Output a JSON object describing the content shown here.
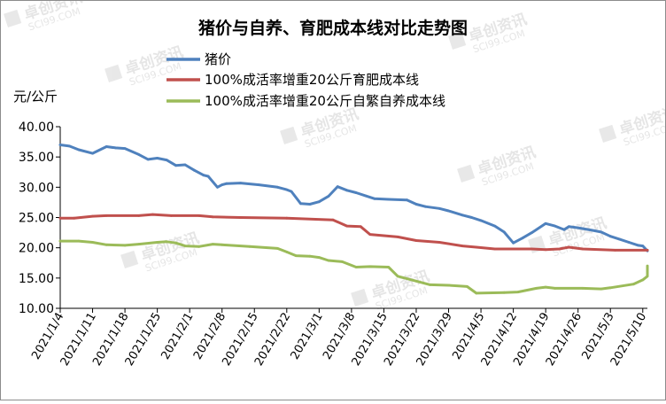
{
  "chart_data": {
    "type": "line",
    "title": "猪价与自养、育肥成本线对比走势图",
    "ylabel": "元/公斤",
    "xlabel": "",
    "ylim": [
      10,
      40
    ],
    "yticks": [
      "10.00",
      "15.00",
      "20.00",
      "25.00",
      "30.00",
      "35.00",
      "40.00"
    ],
    "grid": false,
    "legend_position": "top",
    "x_start": "2021/1/4",
    "x_end": "2021/5/11",
    "x_ticks": [
      "2021/1/4",
      "2021/1/11",
      "2021/1/18",
      "2021/1/25",
      "2021/2/1",
      "2021/2/8",
      "2021/2/15",
      "2021/2/22",
      "2021/3/1",
      "2021/3/8",
      "2021/3/15",
      "2021/3/22",
      "2021/3/29",
      "2021/4/5",
      "2021/4/12",
      "2021/4/19",
      "2021/4/26",
      "2021/5/3",
      "2021/5/10"
    ],
    "series": [
      {
        "name": "猪价",
        "color": "#4f81bd",
        "points": [
          [
            "2021/1/4",
            37.0
          ],
          [
            "2021/1/6",
            36.8
          ],
          [
            "2021/1/8",
            36.2
          ],
          [
            "2021/1/11",
            35.6
          ],
          [
            "2021/1/14",
            36.7
          ],
          [
            "2021/1/16",
            36.5
          ],
          [
            "2021/1/18",
            36.4
          ],
          [
            "2021/1/21",
            35.4
          ],
          [
            "2021/1/23",
            34.6
          ],
          [
            "2021/1/25",
            34.8
          ],
          [
            "2021/1/27",
            34.5
          ],
          [
            "2021/1/29",
            33.6
          ],
          [
            "2021/1/31",
            33.7
          ],
          [
            "2021/2/2",
            32.8
          ],
          [
            "2021/2/4",
            32.0
          ],
          [
            "2021/2/5",
            31.8
          ],
          [
            "2021/2/7",
            30.0
          ],
          [
            "2021/2/8",
            30.4
          ],
          [
            "2021/2/9",
            30.6
          ],
          [
            "2021/2/12",
            30.7
          ],
          [
            "2021/2/16",
            30.4
          ],
          [
            "2021/2/20",
            30.0
          ],
          [
            "2021/2/22",
            29.6
          ],
          [
            "2021/2/23",
            29.3
          ],
          [
            "2021/2/25",
            27.3
          ],
          [
            "2021/2/27",
            27.2
          ],
          [
            "2021/3/1",
            27.6
          ],
          [
            "2021/3/3",
            28.5
          ],
          [
            "2021/3/5",
            30.1
          ],
          [
            "2021/3/7",
            29.5
          ],
          [
            "2021/3/9",
            29.1
          ],
          [
            "2021/3/11",
            28.6
          ],
          [
            "2021/3/13",
            28.1
          ],
          [
            "2021/3/16",
            28.0
          ],
          [
            "2021/3/20",
            27.9
          ],
          [
            "2021/3/22",
            27.2
          ],
          [
            "2021/3/24",
            26.8
          ],
          [
            "2021/3/27",
            26.5
          ],
          [
            "2021/3/29",
            26.1
          ],
          [
            "2021/4/1",
            25.4
          ],
          [
            "2021/4/3",
            25.0
          ],
          [
            "2021/4/5",
            24.5
          ],
          [
            "2021/4/8",
            23.6
          ],
          [
            "2021/4/10",
            22.6
          ],
          [
            "2021/4/12",
            20.8
          ],
          [
            "2021/4/14",
            21.6
          ],
          [
            "2021/4/16",
            22.5
          ],
          [
            "2021/4/19",
            24.0
          ],
          [
            "2021/4/21",
            23.6
          ],
          [
            "2021/4/23",
            23.0
          ],
          [
            "2021/4/24",
            23.5
          ],
          [
            "2021/4/26",
            23.3
          ],
          [
            "2021/4/29",
            22.9
          ],
          [
            "2021/5/1",
            22.6
          ],
          [
            "2021/5/3",
            21.9
          ],
          [
            "2021/5/5",
            21.4
          ],
          [
            "2021/5/7",
            20.9
          ],
          [
            "2021/5/9",
            20.4
          ],
          [
            "2021/5/10",
            20.3
          ],
          [
            "2021/5/11",
            19.5
          ]
        ]
      },
      {
        "name": "100%成活率增重20公斤育肥成本线",
        "color": "#c0504d",
        "points": [
          [
            "2021/1/4",
            24.9
          ],
          [
            "2021/1/7",
            24.9
          ],
          [
            "2021/1/11",
            25.2
          ],
          [
            "2021/1/14",
            25.3
          ],
          [
            "2021/1/21",
            25.3
          ],
          [
            "2021/1/24",
            25.5
          ],
          [
            "2021/1/28",
            25.3
          ],
          [
            "2021/2/3",
            25.3
          ],
          [
            "2021/2/6",
            25.1
          ],
          [
            "2021/2/12",
            25.0
          ],
          [
            "2021/2/22",
            24.9
          ],
          [
            "2021/3/4",
            24.6
          ],
          [
            "2021/3/7",
            23.6
          ],
          [
            "2021/3/10",
            23.5
          ],
          [
            "2021/3/12",
            22.2
          ],
          [
            "2021/3/18",
            21.8
          ],
          [
            "2021/3/22",
            21.2
          ],
          [
            "2021/3/27",
            20.9
          ],
          [
            "2021/4/1",
            20.3
          ],
          [
            "2021/4/4",
            20.1
          ],
          [
            "2021/4/8",
            19.8
          ],
          [
            "2021/4/16",
            19.8
          ],
          [
            "2021/4/19",
            19.7
          ],
          [
            "2021/4/22",
            19.8
          ],
          [
            "2021/4/24",
            20.1
          ],
          [
            "2021/4/27",
            19.8
          ],
          [
            "2021/5/4",
            19.6
          ],
          [
            "2021/5/11",
            19.6
          ]
        ]
      },
      {
        "name": "100%成活率增重20公斤自繁自养成本线",
        "color": "#9bbb59",
        "points": [
          [
            "2021/1/4",
            21.1
          ],
          [
            "2021/1/8",
            21.1
          ],
          [
            "2021/1/11",
            20.9
          ],
          [
            "2021/1/14",
            20.5
          ],
          [
            "2021/1/18",
            20.4
          ],
          [
            "2021/1/21",
            20.6
          ],
          [
            "2021/1/25",
            20.9
          ],
          [
            "2021/1/27",
            21.0
          ],
          [
            "2021/1/29",
            20.8
          ],
          [
            "2021/1/31",
            20.3
          ],
          [
            "2021/2/3",
            20.2
          ],
          [
            "2021/2/6",
            20.6
          ],
          [
            "2021/2/8",
            20.5
          ],
          [
            "2021/2/14",
            20.2
          ],
          [
            "2021/2/20",
            19.9
          ],
          [
            "2021/2/22",
            19.3
          ],
          [
            "2021/2/24",
            18.7
          ],
          [
            "2021/2/27",
            18.6
          ],
          [
            "2021/3/1",
            18.4
          ],
          [
            "2021/3/3",
            17.9
          ],
          [
            "2021/3/6",
            17.7
          ],
          [
            "2021/3/9",
            16.8
          ],
          [
            "2021/3/12",
            16.9
          ],
          [
            "2021/3/16",
            16.8
          ],
          [
            "2021/3/18",
            15.3
          ],
          [
            "2021/3/22",
            14.5
          ],
          [
            "2021/3/25",
            13.9
          ],
          [
            "2021/3/29",
            13.8
          ],
          [
            "2021/4/2",
            13.6
          ],
          [
            "2021/4/4",
            12.5
          ],
          [
            "2021/4/10",
            12.6
          ],
          [
            "2021/4/13",
            12.7
          ],
          [
            "2021/4/17",
            13.3
          ],
          [
            "2021/4/19",
            13.5
          ],
          [
            "2021/4/21",
            13.3
          ],
          [
            "2021/4/27",
            13.3
          ],
          [
            "2021/5/1",
            13.2
          ],
          [
            "2021/5/3",
            13.4
          ],
          [
            "2021/5/8",
            14.0
          ],
          [
            "2021/5/10",
            14.7
          ],
          [
            "2021/5/15",
            15.3
          ],
          [
            "2021/5/20",
            15.9
          ],
          [
            "2021/5/25",
            16.5
          ],
          [
            "2021/5/28",
            17.0
          ]
        ]
      }
    ]
  },
  "watermark": "卓创资讯 SCI99.COM"
}
